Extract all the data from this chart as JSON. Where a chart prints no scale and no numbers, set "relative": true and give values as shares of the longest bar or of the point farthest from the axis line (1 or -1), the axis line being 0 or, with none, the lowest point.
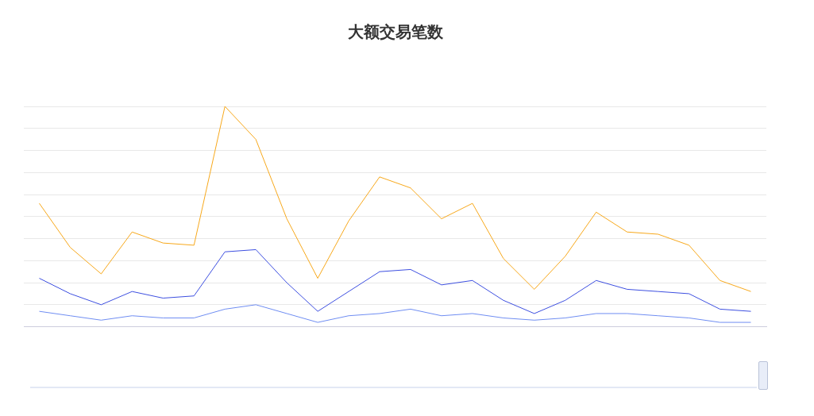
{
  "chart_data": {
    "type": "line",
    "title": "大额交易笔数",
    "relative": true,
    "grid": "y",
    "legend": false,
    "marker": "none",
    "line_style": "solid",
    "categories": [
      null,
      null,
      null,
      null,
      null,
      null,
      null,
      null,
      null,
      null,
      null,
      null,
      null,
      null,
      null,
      null,
      null,
      null,
      null,
      null,
      null,
      null,
      null,
      null
    ],
    "series": [
      {
        "color": "#f7a81b",
        "values": [
          0.56,
          0.36,
          0.24,
          0.43,
          0.38,
          0.37,
          1,
          0.85,
          0.49,
          0.22,
          0.48,
          0.68,
          0.63,
          0.49,
          0.56,
          0.31,
          0.17,
          0.32,
          0.52,
          0.43,
          0.42,
          0.37,
          0.21,
          0.16
        ]
      },
      {
        "color": "#3d4fe0",
        "values": [
          0.22,
          0.15,
          0.1,
          0.16,
          0.13,
          0.14,
          0.34,
          0.35,
          0.2,
          0.07,
          0.16,
          0.25,
          0.26,
          0.19,
          0.21,
          0.12,
          0.06,
          0.12,
          0.21,
          0.17,
          0.16,
          0.15,
          0.08,
          0.07
        ]
      },
      {
        "color": "#6f8df2",
        "values": [
          0.07,
          0.05,
          0.03,
          0.05,
          0.04,
          0.04,
          0.08,
          0.1,
          0.06,
          0.02,
          0.05,
          0.06,
          0.08,
          0.05,
          0.06,
          0.04,
          0.03,
          0.04,
          0.06,
          0.06,
          0.05,
          0.04,
          0.02,
          0.02
        ]
      }
    ]
  }
}
